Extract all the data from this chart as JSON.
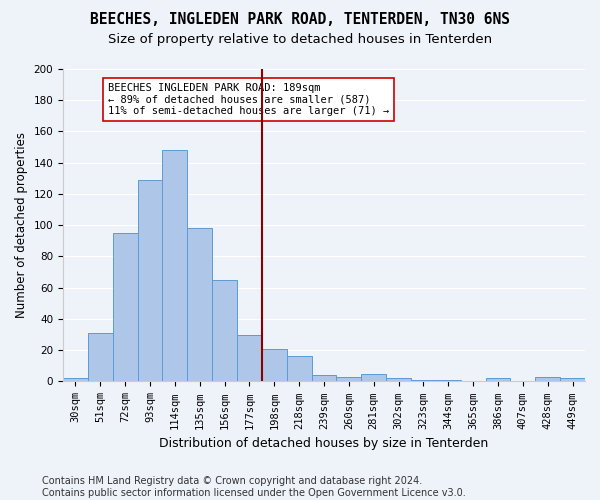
{
  "title": "BEECHES, INGLEDEN PARK ROAD, TENTERDEN, TN30 6NS",
  "subtitle": "Size of property relative to detached houses in Tenterden",
  "xlabel": "Distribution of detached houses by size in Tenterden",
  "ylabel": "Number of detached properties",
  "categories": [
    "30sqm",
    "51sqm",
    "72sqm",
    "93sqm",
    "114sqm",
    "135sqm",
    "156sqm",
    "177sqm",
    "198sqm",
    "218sqm",
    "239sqm",
    "260sqm",
    "281sqm",
    "302sqm",
    "323sqm",
    "344sqm",
    "365sqm",
    "386sqm",
    "407sqm",
    "428sqm",
    "449sqm"
  ],
  "values": [
    2,
    31,
    95,
    129,
    148,
    98,
    65,
    30,
    21,
    16,
    4,
    3,
    5,
    2,
    1,
    1,
    0,
    2,
    0,
    3,
    2
  ],
  "bar_color": "#aec6e8",
  "bar_edge_color": "#5b9bd5",
  "bar_width": 1.0,
  "vline_x": 7.5,
  "vline_color": "#8b0000",
  "annotation_text": "BEECHES INGLEDEN PARK ROAD: 189sqm\n← 89% of detached houses are smaller (587)\n11% of semi-detached houses are larger (71) →",
  "annotation_box_color": "#ffffff",
  "annotation_box_edge": "#cc0000",
  "ylim": [
    0,
    200
  ],
  "yticks": [
    0,
    20,
    40,
    60,
    80,
    100,
    120,
    140,
    160,
    180,
    200
  ],
  "bg_color": "#eef2f9",
  "grid_color": "#ffffff",
  "footer": "Contains HM Land Registry data © Crown copyright and database right 2024.\nContains public sector information licensed under the Open Government Licence v3.0.",
  "title_fontsize": 10.5,
  "subtitle_fontsize": 9.5,
  "xlabel_fontsize": 9,
  "ylabel_fontsize": 8.5,
  "tick_fontsize": 7.5,
  "footer_fontsize": 7
}
